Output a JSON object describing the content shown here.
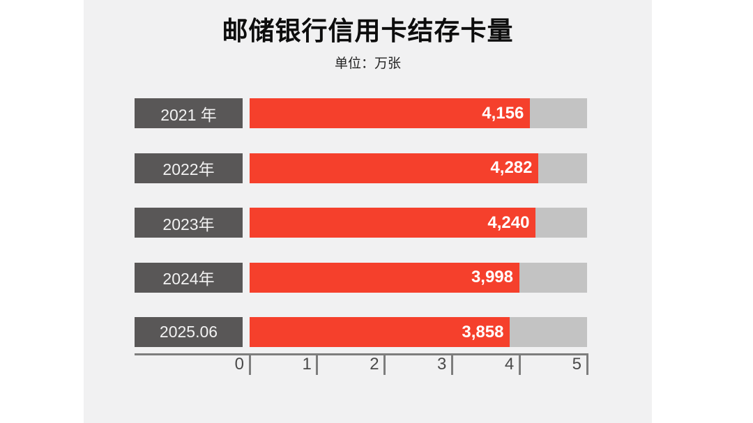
{
  "page": {
    "background": "#ffffff",
    "panel_background": "#f1f1f2"
  },
  "header": {
    "title": "邮储银行信用卡结存卡量",
    "subtitle": "单位：万张"
  },
  "chart_data": {
    "type": "bar",
    "orientation": "horizontal",
    "title": "邮储银行信用卡结存卡量",
    "unit_label": "单位：万张",
    "categories": [
      "2021 年",
      "2022年",
      "2023年",
      "2024年",
      "2025.06"
    ],
    "values": [
      4156,
      4282,
      4240,
      3998,
      3858
    ],
    "value_labels": [
      "4,156",
      "4,282",
      "4,240",
      "3,998",
      "3,858"
    ],
    "xlim": [
      0,
      5000
    ],
    "axis": {
      "min": 0,
      "max": 5,
      "tick_labels": [
        "0",
        "1",
        "2",
        "3",
        "4",
        "5"
      ]
    },
    "grid": false,
    "legend": null,
    "colors": {
      "bar_fill": "#f5402c",
      "bar_track": "#c3c3c3",
      "category_box": "#595757",
      "category_text": "#f2f2f2",
      "value_text": "#ffffff",
      "axis_line": "#7d7d7d",
      "tick_text": "#4a4a4a"
    }
  }
}
